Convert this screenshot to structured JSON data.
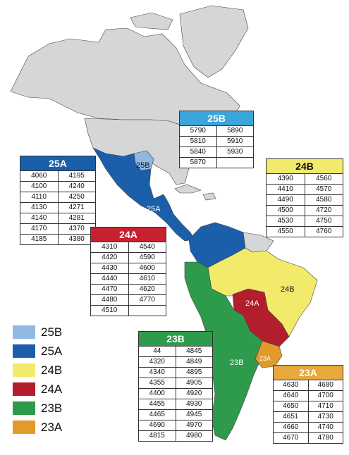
{
  "colors": {
    "25B": "#8fb9e3",
    "25A": "#1b5faa",
    "24B": "#f2ea6a",
    "24A": "#b21e2c",
    "23B": "#2e9a4c",
    "23A": "#e39a2c",
    "land": "#d4d6d8",
    "coast": "#444444"
  },
  "map_labels": {
    "25B": "25B",
    "25A": "25A",
    "24A": "24A",
    "24B": "24B",
    "23B": "23B",
    "23A": "23A"
  },
  "legend": [
    {
      "label": "25B",
      "color": "#8fb9e3"
    },
    {
      "label": "25A",
      "color": "#1b5faa"
    },
    {
      "label": "24B",
      "color": "#f2ea6a"
    },
    {
      "label": "24A",
      "color": "#b21e2c"
    },
    {
      "label": "23B",
      "color": "#2e9a4c"
    },
    {
      "label": "23A",
      "color": "#e39a2c"
    }
  ],
  "panels": {
    "p25B": {
      "title": "25B",
      "header_color": "#3aa6dc",
      "rows": [
        [
          "5790",
          "5890"
        ],
        [
          "5810",
          "5910"
        ],
        [
          "5840",
          "5930"
        ],
        [
          "5870",
          ""
        ]
      ]
    },
    "p25A": {
      "title": "25A",
      "header_color": "#1b5faa",
      "rows": [
        [
          "4060",
          "4195"
        ],
        [
          "4100",
          "4240"
        ],
        [
          "4110",
          "4250"
        ],
        [
          "4130",
          "4271"
        ],
        [
          "4140",
          "4281"
        ],
        [
          "4170",
          "4370"
        ],
        [
          "4185",
          "4380"
        ]
      ]
    },
    "p24B": {
      "title": "24B",
      "header_color": "#f2ea6a",
      "rows": [
        [
          "4390",
          "4560"
        ],
        [
          "4410",
          "4570"
        ],
        [
          "4490",
          "4580"
        ],
        [
          "4500",
          "4720"
        ],
        [
          "4530",
          "4750"
        ],
        [
          "4550",
          "4760"
        ]
      ]
    },
    "p24A": {
      "title": "24A",
      "header_color": "#c8202f",
      "rows": [
        [
          "4310",
          "4540"
        ],
        [
          "4420",
          "4590"
        ],
        [
          "4430",
          "4600"
        ],
        [
          "4440",
          "4610"
        ],
        [
          "4470",
          "4620"
        ],
        [
          "4480",
          "4770"
        ],
        [
          "4510",
          ""
        ]
      ]
    },
    "p23B": {
      "title": "23B",
      "header_color": "#2e9a4c",
      "rows": [
        [
          "44",
          "4845"
        ],
        [
          "4320",
          "4849"
        ],
        [
          "4340",
          "4895"
        ],
        [
          "4355",
          "4905"
        ],
        [
          "4400",
          "4920"
        ],
        [
          "4455",
          "4930"
        ],
        [
          "4465",
          "4945"
        ],
        [
          "4690",
          "4970"
        ],
        [
          "4815",
          "4980"
        ]
      ]
    },
    "p23A": {
      "title": "23A",
      "header_color": "#e8a93a",
      "rows": [
        [
          "4630",
          "4680"
        ],
        [
          "4640",
          "4700"
        ],
        [
          "4650",
          "4710"
        ],
        [
          "4651",
          "4730"
        ],
        [
          "4660",
          "4740"
        ],
        [
          "4670",
          "4780"
        ]
      ]
    }
  }
}
